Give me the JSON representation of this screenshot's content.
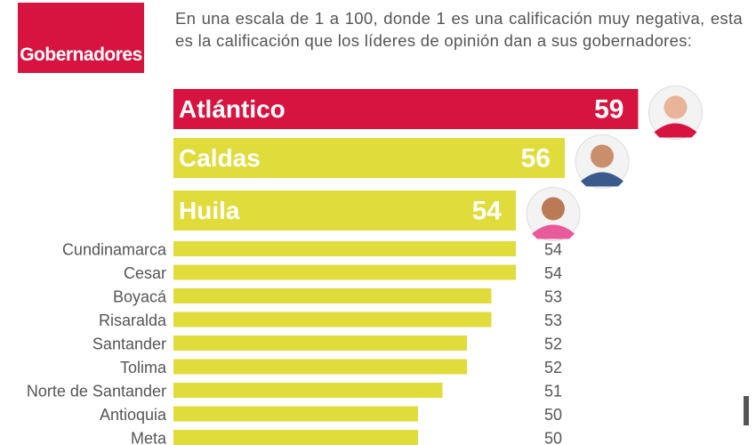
{
  "chart_data": {
    "type": "bar",
    "title": "Gobernadores",
    "subtitle": "En una escala de 1 a 100, donde 1 es una calificación muy negativa, esta es la calificación que los líderes de opinión dan a sus gobernadores:",
    "categories": [
      "Atlántico",
      "Caldas",
      "Huila",
      "Cundinamarca",
      "Cesar",
      "Boyacá",
      "Risaralda",
      "Santander",
      "Tolima",
      "Norte de Santander",
      "Antioquia",
      "Meta"
    ],
    "values": [
      59,
      56,
      54,
      54,
      54,
      53,
      53,
      52,
      52,
      51,
      50,
      50
    ],
    "colors": [
      "#d7143f",
      "#dfdc3c",
      "#dfdc3c",
      "#dfdc3c",
      "#dfdc3c",
      "#dfdc3c",
      "#dfdc3c",
      "#dfdc3c",
      "#dfdc3c",
      "#dfdc3c",
      "#dfdc3c",
      "#dfdc3c"
    ],
    "xlim": [
      40,
      60
    ]
  }
}
